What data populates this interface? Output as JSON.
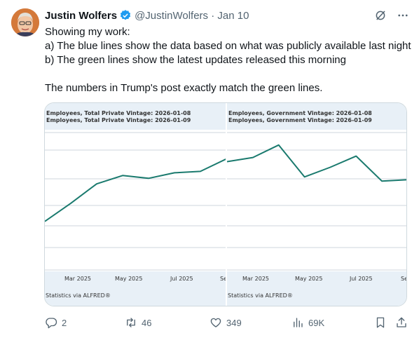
{
  "post": {
    "author_name": "Justin Wolfers",
    "handle_date": "@JustinWolfers · Jan 10",
    "text_lines": [
      "Showing my work:",
      "a) The blue lines show the data based on what was publicly available last night",
      "b) The green lines show the latest updates released this morning",
      "",
      "The numbers in Trump's post exactly match the green lines."
    ]
  },
  "chart_data": [
    {
      "type": "line",
      "title_lines": [
        "Employees, Total Private Vintage: 2026-01-08",
        "Employees, Total Private Vintage: 2026-01-09"
      ],
      "x_tick_labels": [
        "Mar 2025",
        "May 2025",
        "Jul 2025",
        "Se"
      ],
      "source": "Statistics via ALFRED®",
      "line_color": "#1a7a6e",
      "grid": true,
      "values": [
        0.34,
        0.47,
        0.61,
        0.67,
        0.65,
        0.69,
        0.7,
        0.79
      ]
    },
    {
      "type": "line",
      "title_lines": [
        "Employees, Government Vintage: 2026-01-08",
        "Employees, Government Vintage: 2026-01-09"
      ],
      "x_tick_labels": [
        "Mar 2025",
        "May 2025",
        "Jul 2025",
        "Se"
      ],
      "source": "Statistics via ALFRED®",
      "line_color": "#1a7a6e",
      "grid": true,
      "values": [
        0.77,
        0.8,
        0.89,
        0.66,
        0.73,
        0.81,
        0.63,
        0.64
      ]
    }
  ],
  "actions": {
    "replies": "2",
    "reposts": "46",
    "likes": "349",
    "views": "69K"
  },
  "colors": {
    "chart_band": "#e8f0f7",
    "chart_line": "#1a7a6e",
    "text_secondary": "#536471",
    "verified": "#1d9bf0"
  }
}
